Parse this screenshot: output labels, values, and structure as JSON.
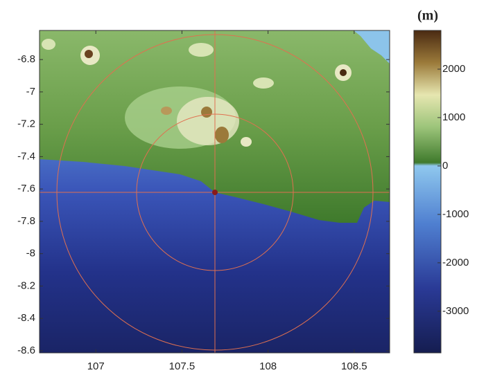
{
  "chart_data": {
    "type": "map",
    "colorbar_label": "(m)",
    "xlim": [
      106.673,
      108.706
    ],
    "xticks": [
      107,
      107.5,
      108,
      108.5
    ],
    "ylim": [
      -8.613,
      -6.62
    ],
    "yticks": [
      -6.8,
      -7,
      -7.2,
      -7.4,
      -7.6,
      -7.8,
      -8,
      -8.2,
      -8.4,
      -8.6
    ],
    "clim": [
      -3860,
      2800
    ],
    "cticks": [
      2000,
      1000,
      0,
      -1000,
      -2000,
      -3000
    ]
  }
}
